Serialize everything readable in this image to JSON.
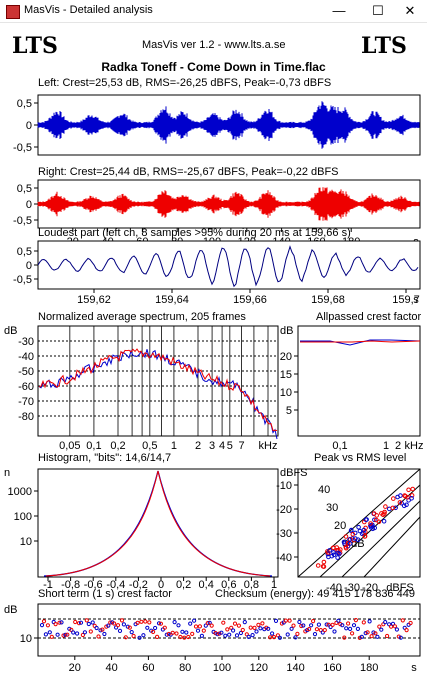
{
  "window": {
    "title": "MasVis - Detailed analysis",
    "minimize_glyph": "—",
    "maximize_glyph": "☐",
    "close_glyph": "✕"
  },
  "header": {
    "logo_left": "LTS",
    "logo_right": "LTS",
    "version": "MasVis ver 1.2 - www.lts.a.se",
    "song": "Radka Toneff - Come Down in Time.flac"
  },
  "left_channel": {
    "label": "Left: Crest=25,53 dB, RMS=-26,25 dBFS, Peak=-0,73 dBFS",
    "yticks": [
      "0,5",
      "0",
      "-0,5"
    ],
    "color": "#0000cc"
  },
  "right_channel": {
    "label": "Right: Crest=25,44 dB, RMS=-25,67 dBFS, Peak=-0,22 dBFS",
    "yticks": [
      "0,5",
      "0",
      "-0,5"
    ],
    "color": "#ee0000",
    "xticks": [
      "20",
      "40",
      "60",
      "80",
      "100",
      "120",
      "140",
      "160",
      "180"
    ],
    "xunit": "s"
  },
  "loudest": {
    "label": "Loudest part (left  ch, 8 samples >95% during 20 ms at 159,66 s)",
    "yticks": [
      "0,5",
      "0",
      "-0,5"
    ],
    "xticks": [
      "159,62",
      "159,64",
      "159,66",
      "159,68",
      "159,7"
    ],
    "xunit": "s"
  },
  "spectrum": {
    "label": "Normalized average spectrum, 205 frames",
    "yunit": "dB",
    "yticks": [
      "-30",
      "-40",
      "-50",
      "-60",
      "-70",
      "-80"
    ],
    "xticks": [
      "0,05",
      "0,1",
      "0,2",
      "0,5",
      "1",
      "2",
      "3",
      "4",
      "5",
      "7"
    ],
    "xunit": "kHz"
  },
  "allpassed": {
    "label": "Allpassed crest factor",
    "yunit": "dB",
    "yticks": [
      "20",
      "15",
      "10",
      "5"
    ],
    "xticks": [
      "0,1",
      "1",
      "2"
    ],
    "xunit": "kHz"
  },
  "histogram": {
    "label": "Histogram, \"bits\": 14,6/14,7",
    "yunit": "n",
    "yticks": [
      "1000",
      "100",
      "10"
    ],
    "xticks": [
      "-1",
      "-0,8",
      "-0,6",
      "-0,4",
      "-0,2",
      "0",
      "0,2",
      "0,4",
      "0,6",
      "0,8",
      "1"
    ]
  },
  "peak_rms": {
    "label": "Peak vs RMS level",
    "yunit": "dBFS",
    "yticks": [
      "-10",
      "-20",
      "-30",
      "-40"
    ],
    "xticks": [
      "-40",
      "-30",
      "-20"
    ],
    "xunit": "dBFS",
    "diag_labels": [
      "40",
      "30",
      "20",
      "0 dB"
    ]
  },
  "short_term": {
    "label": "Short term (1 s) crest factor",
    "checksum": "Checksum (energy):  49 415 178 836 449",
    "yunit": "dB",
    "yticks": [
      "10"
    ],
    "xticks": [
      "20",
      "40",
      "60",
      "80",
      "100",
      "120",
      "140",
      "160",
      "180"
    ],
    "xunit": "s"
  }
}
